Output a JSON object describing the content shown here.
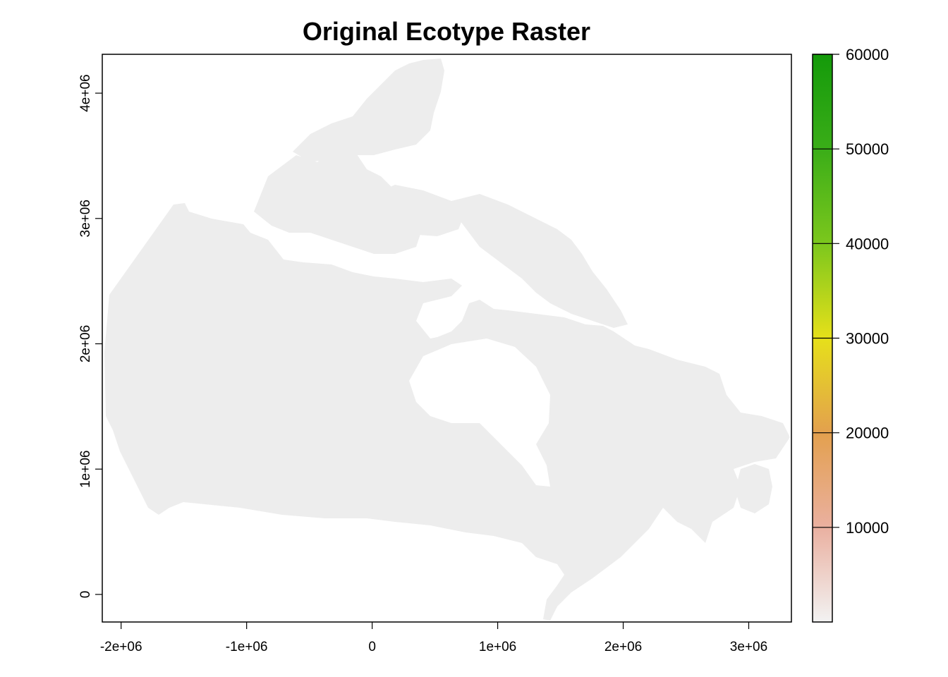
{
  "chart_data": {
    "type": "heatmap",
    "title": "Original Ecotype Raster",
    "xlabel": "",
    "ylabel": "",
    "xlim": [
      -2150000,
      3340000
    ],
    "ylim": [
      -220000,
      4310000
    ],
    "x_ticks": [
      {
        "value": -2000000,
        "label": "-2e+06"
      },
      {
        "value": -1000000,
        "label": "-1e+06"
      },
      {
        "value": 0,
        "label": "0"
      },
      {
        "value": 1000000,
        "label": "1e+06"
      },
      {
        "value": 2000000,
        "label": "2e+06"
      },
      {
        "value": 3000000,
        "label": "3e+06"
      }
    ],
    "y_ticks": [
      {
        "value": 0,
        "label": "0"
      },
      {
        "value": 1000000,
        "label": "1e+06"
      },
      {
        "value": 2000000,
        "label": "2e+06"
      },
      {
        "value": 3000000,
        "label": "3e+06"
      },
      {
        "value": 4000000,
        "label": "4e+06"
      }
    ],
    "legend": {
      "placement": "right",
      "min": 0,
      "max": 60000,
      "ticks": [
        {
          "value": 10000,
          "label": "10000"
        },
        {
          "value": 20000,
          "label": "20000"
        },
        {
          "value": 30000,
          "label": "30000"
        },
        {
          "value": 40000,
          "label": "40000"
        },
        {
          "value": 50000,
          "label": "50000"
        },
        {
          "value": 60000,
          "label": "60000"
        }
      ],
      "color_stops": [
        {
          "value": 0,
          "color": "#f2f2f2"
        },
        {
          "value": 10000,
          "color": "#eab0a0"
        },
        {
          "value": 20000,
          "color": "#e3a04e"
        },
        {
          "value": 30000,
          "color": "#e6e01a"
        },
        {
          "value": 40000,
          "color": "#7cc71d"
        },
        {
          "value": 50000,
          "color": "#3aad18"
        },
        {
          "value": 60000,
          "color": "#149a0a"
        }
      ]
    },
    "colors": {
      "land": "#ededed",
      "water": "#ffffff"
    },
    "grid": false
  }
}
